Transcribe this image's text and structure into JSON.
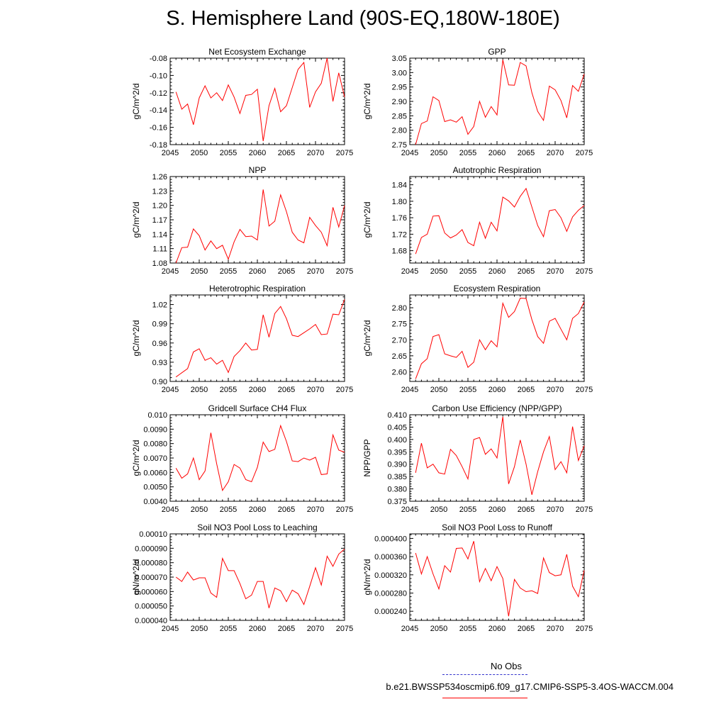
{
  "page": {
    "title": "S. Hemisphere Land (90S-EQ,180W-180E)"
  },
  "legend": {
    "items": [
      {
        "label": "No Obs",
        "color": "#3333cc",
        "style": "dashed"
      },
      {
        "label": "b.e21.BWSSP534oscmip6.f09_g17.CMIP6-SSP5-3.4OS-WACCM.004",
        "color": "#ff0000",
        "style": "solid"
      }
    ]
  },
  "chart_data": [
    {
      "type": "line",
      "title": "Net Ecosystem Exchange",
      "ylabel": "gC/m^2/d",
      "xlim": [
        2045,
        2075
      ],
      "ylim": [
        -0.18,
        -0.08
      ],
      "xticks": [
        "2045",
        "2050",
        "2055",
        "2060",
        "2065",
        "2070",
        "2075"
      ],
      "yticks": [
        -0.18,
        -0.16,
        -0.14,
        -0.12,
        -0.1,
        -0.08
      ],
      "ytick_labels": [
        "-0.18",
        "-0.16",
        "-0.14",
        "-0.12",
        "-0.10",
        "-0.08"
      ],
      "x": [
        2046,
        2047,
        2048,
        2049,
        2050,
        2051,
        2052,
        2053,
        2054,
        2055,
        2056,
        2057,
        2058,
        2059,
        2060,
        2061,
        2062,
        2063,
        2064,
        2065,
        2066,
        2067,
        2068,
        2069,
        2070,
        2071,
        2072,
        2073,
        2074,
        2075
      ],
      "series": [
        {
          "name": "b.e21.BWSSP534oscmip6.f09_g17.CMIP6-SSP5-3.4OS-WACCM.004",
          "color": "#ff0000",
          "values": [
            -0.119,
            -0.139,
            -0.133,
            -0.157,
            -0.126,
            -0.112,
            -0.126,
            -0.12,
            -0.129,
            -0.111,
            -0.125,
            -0.144,
            -0.123,
            -0.122,
            -0.116,
            -0.176,
            -0.135,
            -0.115,
            -0.142,
            -0.135,
            -0.114,
            -0.093,
            -0.085,
            -0.137,
            -0.119,
            -0.109,
            -0.08,
            -0.13,
            -0.097,
            -0.125
          ]
        }
      ]
    },
    {
      "type": "line",
      "title": "GPP",
      "ylabel": "gC/m^2/d",
      "xlim": [
        2045,
        2075
      ],
      "ylim": [
        2.75,
        3.05
      ],
      "xticks": [
        "2045",
        "2050",
        "2055",
        "2060",
        "2065",
        "2070",
        "2075"
      ],
      "yticks": [
        2.75,
        2.8,
        2.85,
        2.9,
        2.95,
        3.0,
        3.05
      ],
      "ytick_labels": [
        "2.75",
        "2.80",
        "2.85",
        "2.90",
        "2.95",
        "3.00",
        "3.05"
      ],
      "x": [
        2046,
        2047,
        2048,
        2049,
        2050,
        2051,
        2052,
        2053,
        2054,
        2055,
        2056,
        2057,
        2058,
        2059,
        2060,
        2061,
        2062,
        2063,
        2064,
        2065,
        2066,
        2067,
        2068,
        2069,
        2070,
        2071,
        2072,
        2073,
        2074,
        2075
      ],
      "series": [
        {
          "name": "b.e21.BWSSP534oscmip6.f09_g17.CMIP6-SSP5-3.4OS-WACCM.004",
          "color": "#ff0000",
          "values": [
            2.75,
            2.823,
            2.832,
            2.916,
            2.903,
            2.83,
            2.836,
            2.828,
            2.847,
            2.786,
            2.813,
            2.9,
            2.845,
            2.882,
            2.853,
            3.044,
            2.957,
            2.956,
            3.035,
            3.023,
            2.93,
            2.865,
            2.834,
            2.953,
            2.94,
            2.903,
            2.843,
            2.955,
            2.935,
            2.995
          ]
        }
      ]
    },
    {
      "type": "line",
      "title": "NPP",
      "ylabel": "gC/m^2/d",
      "xlim": [
        2045,
        2075
      ],
      "ylim": [
        1.08,
        1.26
      ],
      "xticks": [
        "2045",
        "2050",
        "2055",
        "2060",
        "2065",
        "2070",
        "2075"
      ],
      "yticks": [
        1.08,
        1.11,
        1.14,
        1.17,
        1.2,
        1.23,
        1.26
      ],
      "ytick_labels": [
        "1.08",
        "1.11",
        "1.14",
        "1.17",
        "1.20",
        "1.23",
        "1.26"
      ],
      "x": [
        2046,
        2047,
        2048,
        2049,
        2050,
        2051,
        2052,
        2053,
        2054,
        2055,
        2056,
        2057,
        2058,
        2059,
        2060,
        2061,
        2062,
        2063,
        2064,
        2065,
        2066,
        2067,
        2068,
        2069,
        2070,
        2071,
        2072,
        2073,
        2074,
        2075
      ],
      "series": [
        {
          "name": "b.e21.BWSSP534oscmip6.f09_g17.CMIP6-SSP5-3.4OS-WACCM.004",
          "color": "#ff0000",
          "values": [
            1.08,
            1.112,
            1.113,
            1.151,
            1.137,
            1.107,
            1.126,
            1.11,
            1.117,
            1.088,
            1.124,
            1.15,
            1.135,
            1.136,
            1.128,
            1.233,
            1.157,
            1.167,
            1.222,
            1.187,
            1.144,
            1.128,
            1.122,
            1.175,
            1.158,
            1.144,
            1.116,
            1.196,
            1.155,
            1.2
          ]
        }
      ]
    },
    {
      "type": "line",
      "title": "Autotrophic Respiration",
      "ylabel": "gC/m^2/d",
      "xlim": [
        2045,
        2075
      ],
      "ylim": [
        1.65,
        1.86
      ],
      "xticks": [
        "2045",
        "2050",
        "2055",
        "2060",
        "2065",
        "2070",
        "2075"
      ],
      "yticks": [
        1.68,
        1.72,
        1.76,
        1.8,
        1.84
      ],
      "ytick_labels": [
        "1.68",
        "1.72",
        "1.76",
        "1.80",
        "1.84"
      ],
      "x": [
        2046,
        2047,
        2048,
        2049,
        2050,
        2051,
        2052,
        2053,
        2054,
        2055,
        2056,
        2057,
        2058,
        2059,
        2060,
        2061,
        2062,
        2063,
        2064,
        2065,
        2066,
        2067,
        2068,
        2069,
        2070,
        2071,
        2072,
        2073,
        2074,
        2075
      ],
      "series": [
        {
          "name": "b.e21.BWSSP534oscmip6.f09_g17.CMIP6-SSP5-3.4OS-WACCM.004",
          "color": "#ff0000",
          "values": [
            1.672,
            1.712,
            1.72,
            1.764,
            1.765,
            1.723,
            1.711,
            1.718,
            1.731,
            1.7,
            1.692,
            1.749,
            1.71,
            1.749,
            1.728,
            1.81,
            1.801,
            1.786,
            1.812,
            1.831,
            1.786,
            1.741,
            1.714,
            1.777,
            1.78,
            1.76,
            1.727,
            1.762,
            1.778,
            1.79
          ]
        }
      ]
    },
    {
      "type": "line",
      "title": "Heterotrophic Respiration",
      "ylabel": "gC/m^2/d",
      "xlim": [
        2045,
        2075
      ],
      "ylim": [
        0.9,
        1.035
      ],
      "xticks": [
        "2045",
        "2050",
        "2055",
        "2060",
        "2065",
        "2070",
        "2075"
      ],
      "yticks": [
        0.9,
        0.93,
        0.96,
        0.99,
        1.02
      ],
      "ytick_labels": [
        "0.90",
        "0.93",
        "0.96",
        "0.99",
        "1.02"
      ],
      "x": [
        2046,
        2048,
        2049,
        2050,
        2051,
        2052,
        2053,
        2054,
        2055,
        2056,
        2057,
        2058,
        2059,
        2060,
        2061,
        2062,
        2063,
        2064,
        2065,
        2066,
        2067,
        2068,
        2069,
        2070,
        2071,
        2072,
        2073,
        2074,
        2075
      ],
      "series": [
        {
          "name": "b.e21.BWSSP534oscmip6.f09_g17.CMIP6-SSP5-3.4OS-WACCM.004",
          "color": "#ff0000",
          "values": [
            0.907,
            0.92,
            0.946,
            0.951,
            0.933,
            0.937,
            0.927,
            0.933,
            0.914,
            0.939,
            0.948,
            0.96,
            0.949,
            0.95,
            1.004,
            0.969,
            1.006,
            1.017,
            0.998,
            0.972,
            0.97,
            0.976,
            0.982,
            0.989,
            0.973,
            0.974,
            1.005,
            1.004,
            1.028
          ]
        }
      ]
    },
    {
      "type": "line",
      "title": "Ecosystem Respiration",
      "ylabel": "gC/m^2/d",
      "xlim": [
        2045,
        2075
      ],
      "ylim": [
        2.57,
        2.84
      ],
      "xticks": [
        "2045",
        "2050",
        "2055",
        "2060",
        "2065",
        "2070",
        "2075"
      ],
      "yticks": [
        2.6,
        2.65,
        2.7,
        2.75,
        2.8
      ],
      "ytick_labels": [
        "2.60",
        "2.65",
        "2.70",
        "2.75",
        "2.80"
      ],
      "x": [
        2046,
        2047,
        2048,
        2049,
        2050,
        2051,
        2052,
        2053,
        2054,
        2055,
        2056,
        2057,
        2058,
        2059,
        2060,
        2061,
        2062,
        2063,
        2064,
        2065,
        2066,
        2067,
        2068,
        2069,
        2070,
        2071,
        2072,
        2073,
        2074,
        2075
      ],
      "series": [
        {
          "name": "b.e21.BWSSP534oscmip6.f09_g17.CMIP6-SSP5-3.4OS-WACCM.004",
          "color": "#ff0000",
          "values": [
            2.578,
            2.625,
            2.641,
            2.71,
            2.716,
            2.656,
            2.65,
            2.645,
            2.664,
            2.614,
            2.63,
            2.7,
            2.669,
            2.697,
            2.678,
            2.814,
            2.77,
            2.788,
            2.83,
            2.829,
            2.763,
            2.71,
            2.689,
            2.758,
            2.767,
            2.733,
            2.7,
            2.767,
            2.782,
            2.818
          ]
        }
      ]
    },
    {
      "type": "line",
      "title": "Gridcell Surface CH4 Flux",
      "ylabel": "gC/m^2/d",
      "xlim": [
        2045,
        2075
      ],
      "ylim": [
        0.004,
        0.01
      ],
      "xticks": [
        "2045",
        "2050",
        "2055",
        "2060",
        "2065",
        "2070",
        "2075"
      ],
      "yticks": [
        0.004,
        0.005,
        0.006,
        0.007,
        0.008,
        0.009,
        0.01
      ],
      "ytick_labels": [
        "0.0040",
        "0.0050",
        "0.0060",
        "0.0070",
        "0.0080",
        "0.0090",
        "0.010"
      ],
      "x": [
        2046,
        2047,
        2048,
        2049,
        2050,
        2051,
        2052,
        2053,
        2054,
        2055,
        2056,
        2057,
        2058,
        2059,
        2060,
        2061,
        2062,
        2063,
        2064,
        2065,
        2066,
        2067,
        2068,
        2069,
        2070,
        2071,
        2072,
        2073,
        2074,
        2075
      ],
      "series": [
        {
          "name": "b.e21.BWSSP534oscmip6.f09_g17.CMIP6-SSP5-3.4OS-WACCM.004",
          "color": "#ff0000",
          "values": [
            0.0063,
            0.0056,
            0.0059,
            0.007,
            0.0055,
            0.0061,
            0.00875,
            0.0066,
            0.00475,
            0.00535,
            0.00655,
            0.0063,
            0.0055,
            0.00535,
            0.00635,
            0.0081,
            0.00745,
            0.0076,
            0.00925,
            0.00815,
            0.0068,
            0.00675,
            0.007,
            0.00685,
            0.00705,
            0.00585,
            0.0059,
            0.0086,
            0.00755,
            0.0074
          ]
        }
      ]
    },
    {
      "type": "line",
      "title": "Carbon Use Efficiency (NPP/GPP)",
      "ylabel": "NPP/GPP",
      "xlim": [
        2045,
        2075
      ],
      "ylim": [
        0.375,
        0.41
      ],
      "xticks": [
        "2045",
        "2050",
        "2055",
        "2060",
        "2065",
        "2070",
        "2075"
      ],
      "yticks": [
        0.375,
        0.38,
        0.385,
        0.39,
        0.395,
        0.4,
        0.405,
        0.41
      ],
      "ytick_labels": [
        "0.375",
        "0.380",
        "0.385",
        "0.390",
        "0.395",
        "0.400",
        "0.405",
        "0.410"
      ],
      "x": [
        2046,
        2047,
        2048,
        2049,
        2050,
        2051,
        2052,
        2053,
        2054,
        2055,
        2056,
        2057,
        2058,
        2059,
        2060,
        2061,
        2062,
        2063,
        2064,
        2065,
        2066,
        2067,
        2068,
        2069,
        2070,
        2071,
        2072,
        2073,
        2074,
        2075
      ],
      "series": [
        {
          "name": "b.e21.BWSSP534oscmip6.f09_g17.CMIP6-SSP5-3.4OS-WACCM.004",
          "color": "#ff0000",
          "values": [
            0.3865,
            0.3985,
            0.3885,
            0.39,
            0.3865,
            0.386,
            0.396,
            0.3935,
            0.389,
            0.384,
            0.4,
            0.4008,
            0.394,
            0.3962,
            0.3925,
            0.4092,
            0.382,
            0.389,
            0.3998,
            0.39,
            0.3776,
            0.387,
            0.395,
            0.4012,
            0.3878,
            0.391,
            0.3865,
            0.4052,
            0.3915,
            0.3975
          ]
        }
      ]
    },
    {
      "type": "line",
      "title": "Soil NO3 Pool Loss to Leaching",
      "ylabel": "gN/m^2/d",
      "xlim": [
        2045,
        2075
      ],
      "ylim": [
        4e-05,
        0.0001
      ],
      "xticks": [
        "2045",
        "2050",
        "2055",
        "2060",
        "2065",
        "2070",
        "2075"
      ],
      "yticks": [
        4e-05,
        5e-05,
        6e-05,
        7e-05,
        8e-05,
        9e-05,
        0.0001
      ],
      "ytick_labels": [
        "0.000040",
        "0.000050",
        "0.000060",
        "0.000070",
        "0.000080",
        "0.000090",
        "0.00010"
      ],
      "x": [
        2046,
        2047,
        2048,
        2049,
        2050,
        2051,
        2052,
        2053,
        2054,
        2055,
        2056,
        2057,
        2058,
        2059,
        2060,
        2061,
        2062,
        2063,
        2064,
        2065,
        2066,
        2067,
        2068,
        2069,
        2070,
        2071,
        2072,
        2073,
        2074,
        2075
      ],
      "series": [
        {
          "name": "b.e21.BWSSP534oscmip6.f09_g17.CMIP6-SSP5-3.4OS-WACCM.004",
          "color": "#ff0000",
          "values": [
            7e-05,
            6.7e-05,
            7.35e-05,
            6.8e-05,
            6.95e-05,
            6.95e-05,
            5.9e-05,
            5.6e-05,
            8.3e-05,
            7.45e-05,
            7.45e-05,
            6.55e-05,
            5.5e-05,
            5.75e-05,
            6.7e-05,
            6.7e-05,
            4.85e-05,
            6.25e-05,
            6.05e-05,
            5.3e-05,
            6.1e-05,
            5.85e-05,
            5.1e-05,
            6.35e-05,
            7.65e-05,
            6.45e-05,
            8.45e-05,
            7.75e-05,
            8.6e-05,
            8.95e-05
          ]
        }
      ]
    },
    {
      "type": "line",
      "title": "Soil NO3 Pool Loss to Runoff",
      "ylabel": "gN/m^2/d",
      "xlim": [
        2045,
        2075
      ],
      "ylim": [
        0.00022,
        0.00041
      ],
      "xticks": [
        "2045",
        "2050",
        "2055",
        "2060",
        "2065",
        "2070",
        "2075"
      ],
      "yticks": [
        0.00024,
        0.00028,
        0.00032,
        0.00036,
        0.0004
      ],
      "ytick_labels": [
        "0.000240",
        "0.000280",
        "0.000320",
        "0.000360",
        "0.000400"
      ],
      "x": [
        2046,
        2047,
        2048,
        2049,
        2050,
        2051,
        2052,
        2053,
        2054,
        2055,
        2056,
        2057,
        2058,
        2059,
        2060,
        2061,
        2062,
        2063,
        2064,
        2065,
        2066,
        2067,
        2068,
        2069,
        2070,
        2071,
        2072,
        2073,
        2074,
        2075
      ],
      "series": [
        {
          "name": "b.e21.BWSSP534oscmip6.f09_g17.CMIP6-SSP5-3.4OS-WACCM.004",
          "color": "#ff0000",
          "values": [
            0.000368,
            0.000322,
            0.00036,
            0.000322,
            0.000289,
            0.00034,
            0.000326,
            0.000378,
            0.000379,
            0.000355,
            0.000394,
            0.000305,
            0.000334,
            0.000307,
            0.000338,
            0.000312,
            0.000229,
            0.00031,
            0.000291,
            0.000283,
            0.000285,
            0.000279,
            0.000357,
            0.000325,
            0.000318,
            0.00032,
            0.000365,
            0.000295,
            0.000272,
            0.00033
          ]
        }
      ]
    }
  ]
}
